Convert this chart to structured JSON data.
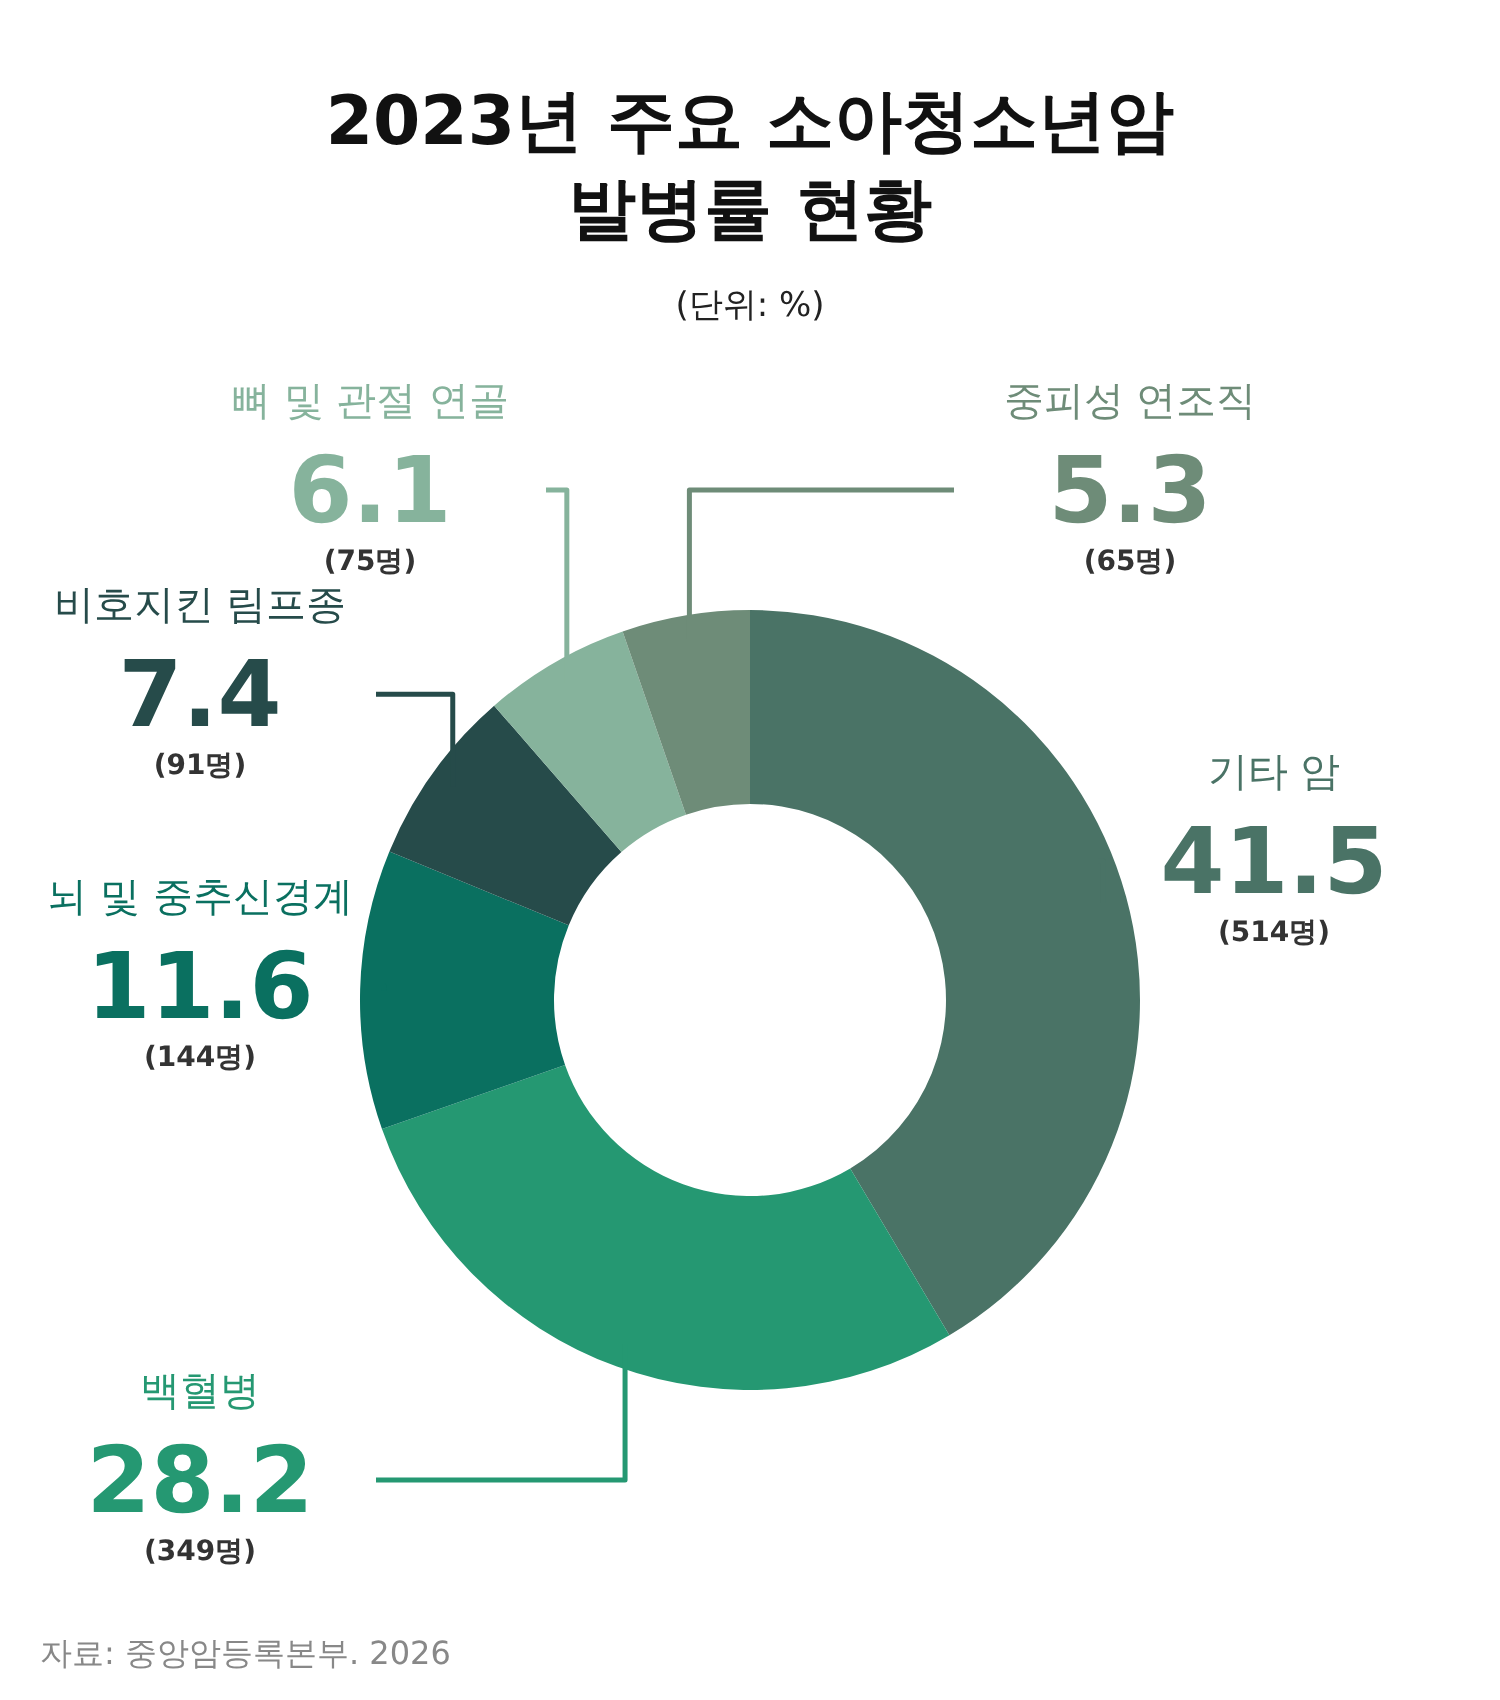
{
  "chart_data": {
    "type": "donut",
    "title": "2023년 주요 소아청소년암\n발병률 현황",
    "subtitle": "(단위: %)",
    "categories": [
      "기타 암",
      "백혈병",
      "뇌 및 중추신경계",
      "비호지킨 림프종",
      "뼈 및 관절 연골",
      "중피성 연조직"
    ],
    "values": [
      41.5,
      28.2,
      11.6,
      7.4,
      6.1,
      5.3
    ],
    "colors": [
      "#4a7366",
      "#259872",
      "#0a7060",
      "#264b4a",
      "#86b39c",
      "#6e8c78"
    ],
    "data_labels": true,
    "annotations": [
      {
        "text": "(514명)",
        "x": "기타 암"
      },
      {
        "text": "(349명)",
        "x": "백혈병"
      },
      {
        "text": "(144명)",
        "x": "뇌 및 중추신경계"
      },
      {
        "text": "(91명)",
        "x": "비호지킨 림프종"
      },
      {
        "text": "(75명)",
        "x": "뼈 및 관절 연골"
      },
      {
        "text": "(65명)",
        "x": "중피성 연조직"
      },
      "자료: 중앙암등록본부. 2026"
    ]
  }
}
